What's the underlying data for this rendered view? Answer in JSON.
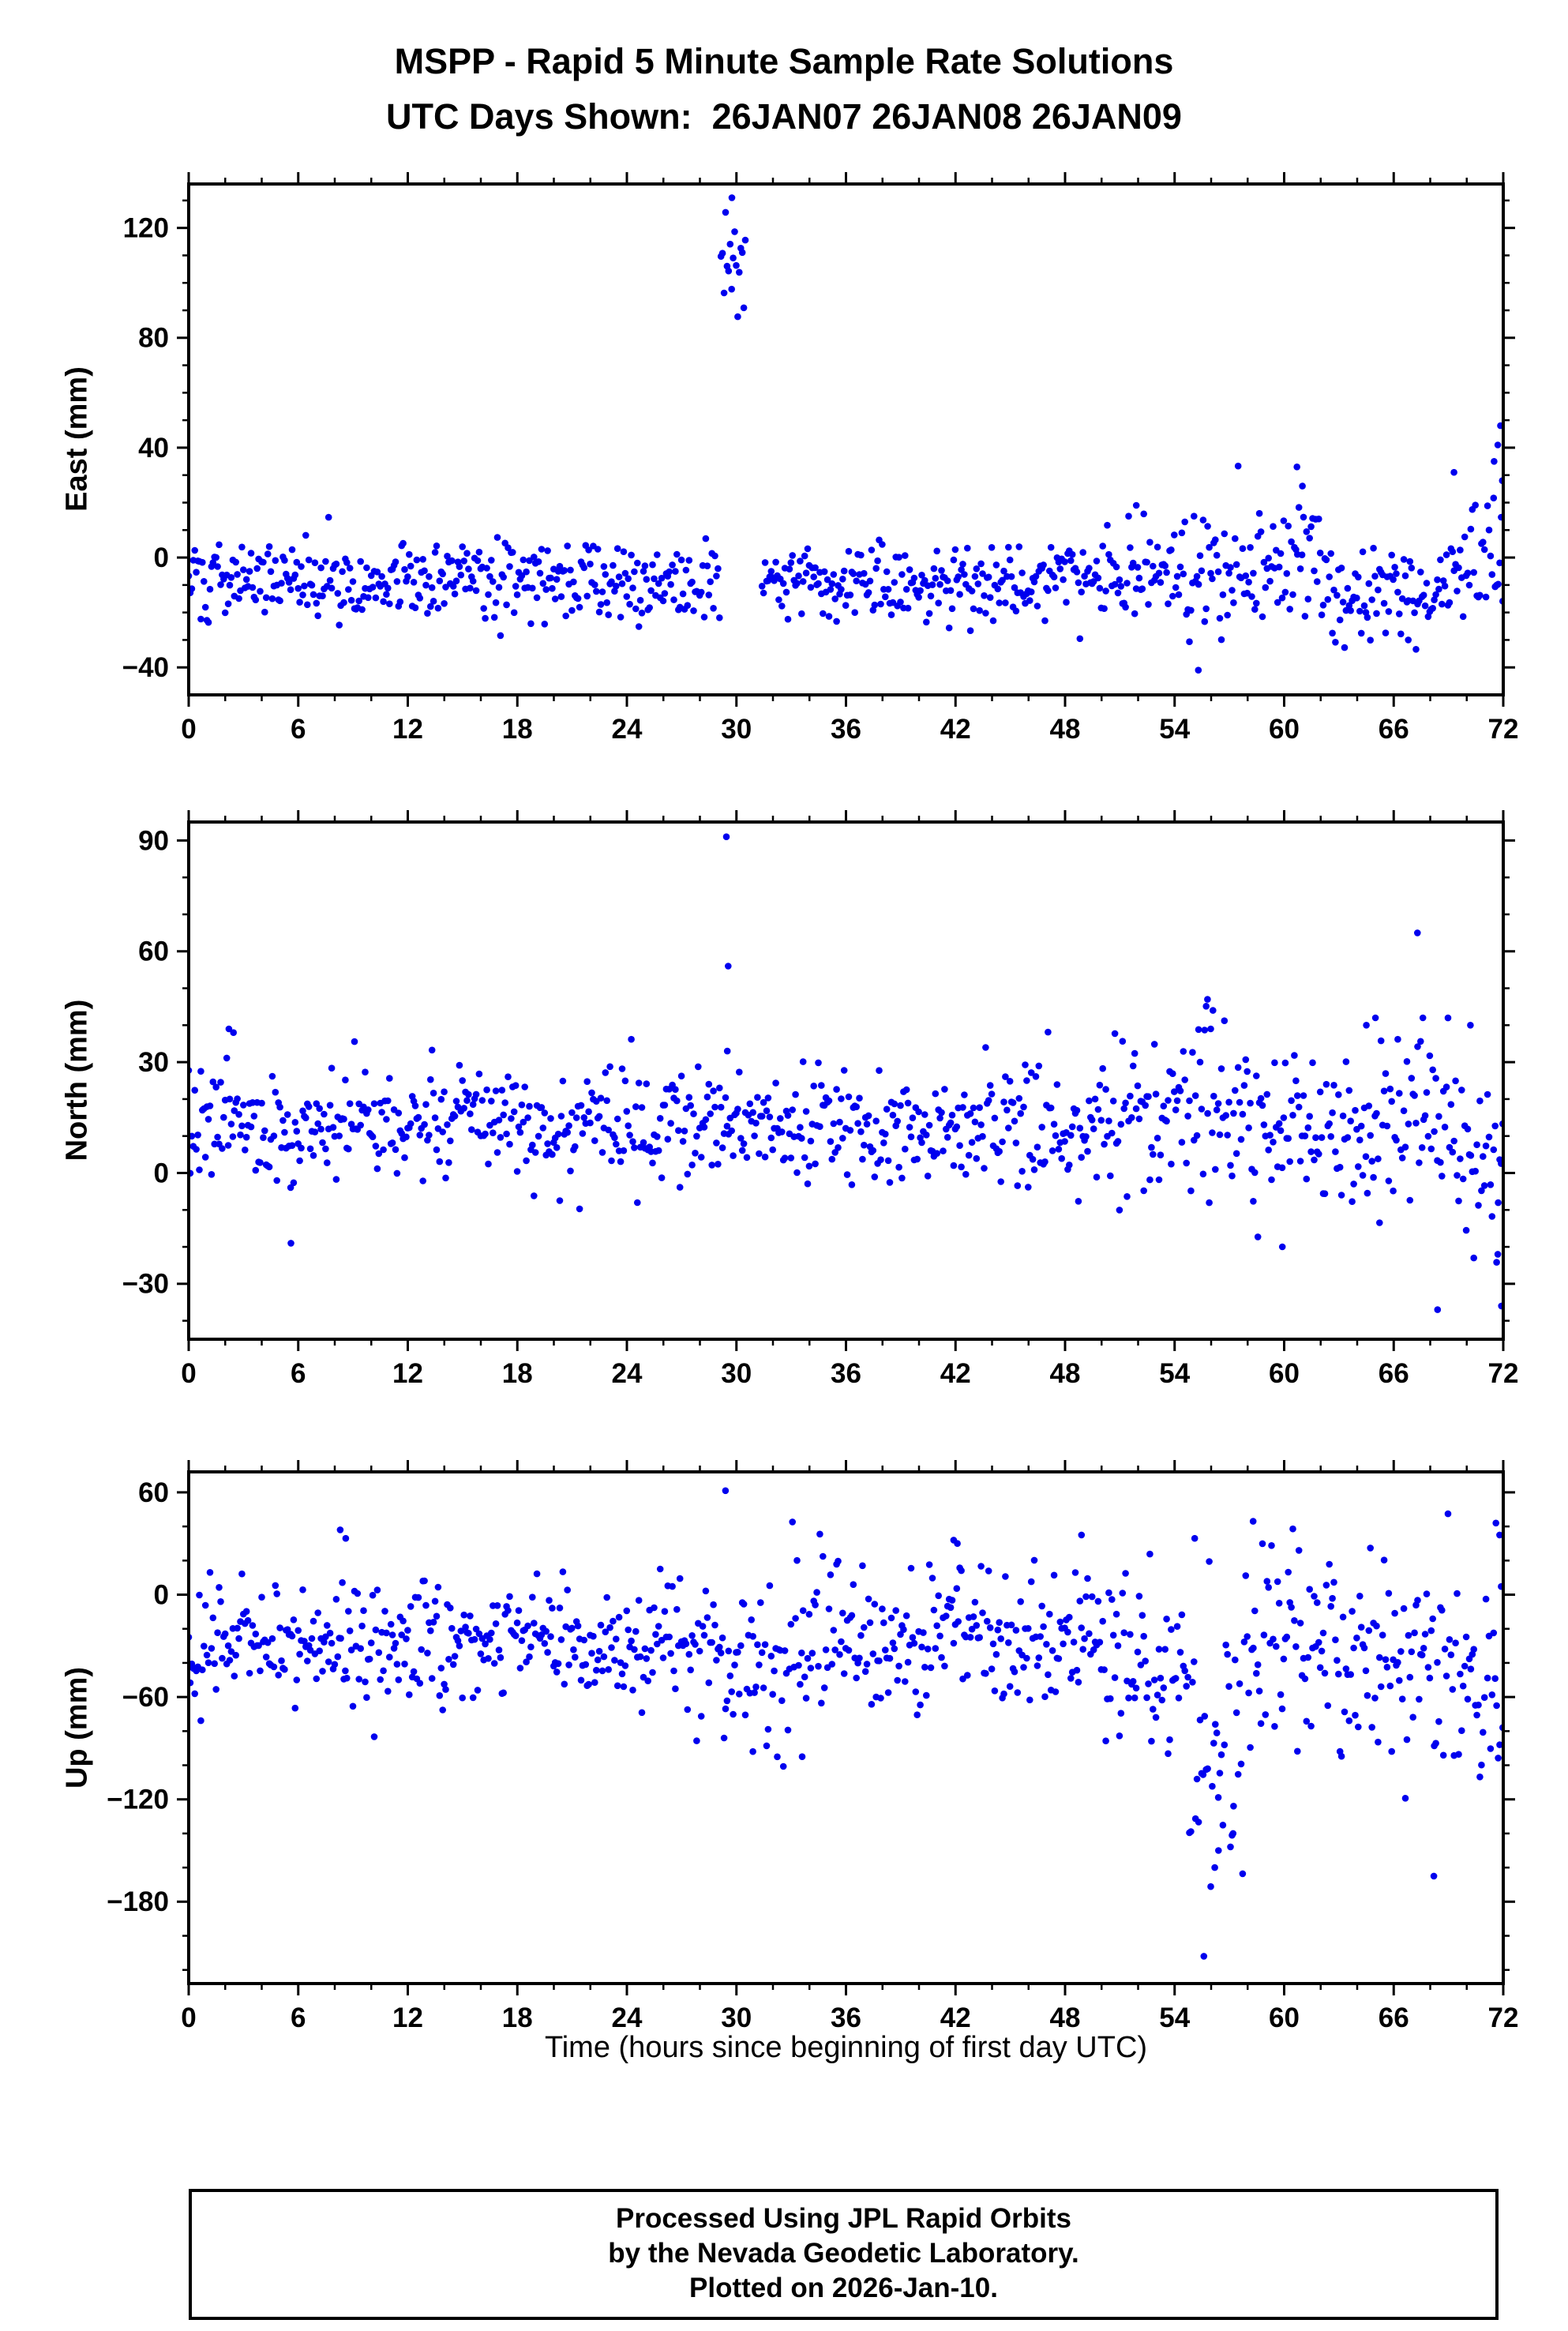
{
  "title": {
    "line1": "MSPP - Rapid 5 Minute Sample Rate Solutions",
    "line2": "UTC Days Shown:  26JAN07 26JAN08 26JAN09"
  },
  "xlabel": "Time (hours since beginning of first day UTC)",
  "footer": {
    "line1": "Processed Using JPL Rapid Orbits",
    "line2": "by the Nevada Geodetic Laboratory.",
    "line3": "Plotted on 2026-Jan-10."
  },
  "marker_color": "#0000ee",
  "frame_color": "#000000",
  "chart_data": [
    {
      "type": "scatter",
      "panel": "east",
      "title": "East component time series",
      "ylabel": "East (mm)",
      "xlabel": "",
      "xlim": [
        0,
        72
      ],
      "ylim": [
        -50,
        136
      ],
      "xticks": [
        0,
        6,
        12,
        18,
        24,
        30,
        36,
        42,
        48,
        54,
        60,
        66,
        72
      ],
      "xtick_minor_step": 2,
      "yticks": [
        -40,
        0,
        40,
        80,
        120
      ],
      "ytick_minor_step": 10,
      "marker_color": "#0000ee",
      "sample_interval_hours": 0.0833,
      "seed": 101,
      "baseline": {
        "mean": -8,
        "std": 7
      },
      "segments": [
        {
          "from": 50,
          "to": 54,
          "mean": -6,
          "std": 9
        },
        {
          "from": 54,
          "to": 62,
          "mean": -2,
          "std": 12
        },
        {
          "from": 62,
          "to": 69,
          "mean": -12,
          "std": 9
        },
        {
          "from": 69,
          "to": 72,
          "mean": -2,
          "std": 14
        }
      ],
      "anomalies": [
        {
          "from": 29.15,
          "to": 30.55,
          "mean": 104,
          "std": 11
        }
      ],
      "gaps": [
        [
          30.55,
          31.35
        ]
      ],
      "outliers": [
        [
          29.75,
          131
        ],
        [
          51.9,
          19
        ],
        [
          55.3,
          -41
        ],
        [
          60.7,
          33
        ],
        [
          61.0,
          26
        ],
        [
          66.8,
          -30
        ],
        [
          69.3,
          31
        ],
        [
          71.5,
          35
        ],
        [
          71.7,
          41
        ],
        [
          71.85,
          48
        ],
        [
          71.95,
          28
        ]
      ]
    },
    {
      "type": "scatter",
      "panel": "north",
      "title": "North component time series",
      "ylabel": "North (mm)",
      "xlabel": "",
      "xlim": [
        0,
        72
      ],
      "ylim": [
        -45,
        95
      ],
      "xticks": [
        0,
        6,
        12,
        18,
        24,
        30,
        36,
        42,
        48,
        54,
        60,
        66,
        72
      ],
      "xtick_minor_step": 2,
      "yticks": [
        -30,
        0,
        30,
        60,
        90
      ],
      "ytick_minor_step": 10,
      "marker_color": "#0000ee",
      "sample_interval_hours": 0.0833,
      "seed": 202,
      "baseline": {
        "mean": 13,
        "std": 7.5
      },
      "segments": [
        {
          "from": 50,
          "to": 60,
          "mean": 15,
          "std": 11
        },
        {
          "from": 60,
          "to": 66,
          "mean": 12,
          "std": 10
        },
        {
          "from": 66,
          "to": 70,
          "mean": 16,
          "std": 12
        },
        {
          "from": 70,
          "to": 72,
          "mean": 2,
          "std": 12
        }
      ],
      "anomalies": [],
      "gaps": [],
      "outliers": [
        [
          29.45,
          91
        ],
        [
          29.55,
          56
        ],
        [
          29.5,
          33
        ],
        [
          2.2,
          39
        ],
        [
          2.45,
          38
        ],
        [
          5.6,
          -19
        ],
        [
          55.8,
          47
        ],
        [
          56.1,
          44
        ],
        [
          59.9,
          -20
        ],
        [
          64.5,
          40
        ],
        [
          65.0,
          42
        ],
        [
          67.3,
          65
        ],
        [
          67.6,
          42
        ],
        [
          68.4,
          -37
        ],
        [
          70.2,
          40
        ],
        [
          71.7,
          -22
        ],
        [
          71.9,
          -36
        ]
      ]
    },
    {
      "type": "scatter",
      "panel": "up",
      "title": "Up component time series",
      "ylabel": "Up (mm)",
      "xlabel": "Time (hours since beginning of first day UTC)",
      "xlim": [
        0,
        72
      ],
      "ylim": [
        -228,
        72
      ],
      "xticks": [
        0,
        6,
        12,
        18,
        24,
        30,
        36,
        42,
        48,
        54,
        60,
        66,
        72
      ],
      "xtick_minor_step": 2,
      "yticks": [
        -180,
        -120,
        -60,
        0,
        60
      ],
      "ytick_minor_step": 20,
      "marker_color": "#0000ee",
      "sample_interval_hours": 0.0833,
      "seed": 303,
      "baseline": {
        "mean": -27,
        "std": 17
      },
      "segments": [
        {
          "from": 29,
          "to": 33,
          "mean": -45,
          "std": 22
        },
        {
          "from": 33,
          "to": 50,
          "mean": -25,
          "std": 20
        },
        {
          "from": 50,
          "to": 54.8,
          "mean": -45,
          "std": 25
        },
        {
          "from": 54.8,
          "to": 57.8,
          "mean": -95,
          "std": 38
        },
        {
          "from": 57.8,
          "to": 63,
          "mean": -30,
          "std": 25
        },
        {
          "from": 63,
          "to": 72,
          "mean": -45,
          "std": 30
        }
      ],
      "anomalies": [],
      "gaps": [],
      "outliers": [
        [
          29.4,
          61
        ],
        [
          55.1,
          33
        ],
        [
          55.6,
          -212
        ],
        [
          56.2,
          -160
        ],
        [
          56.4,
          -150
        ],
        [
          57.2,
          -140
        ],
        [
          68.2,
          -165
        ],
        [
          8.3,
          38
        ],
        [
          8.6,
          33
        ],
        [
          30.9,
          -92
        ],
        [
          33.6,
          -95
        ],
        [
          41.9,
          32
        ],
        [
          42.1,
          30
        ],
        [
          48.9,
          35
        ],
        [
          58.3,
          43
        ],
        [
          71.6,
          42
        ],
        [
          71.8,
          35
        ]
      ]
    }
  ]
}
